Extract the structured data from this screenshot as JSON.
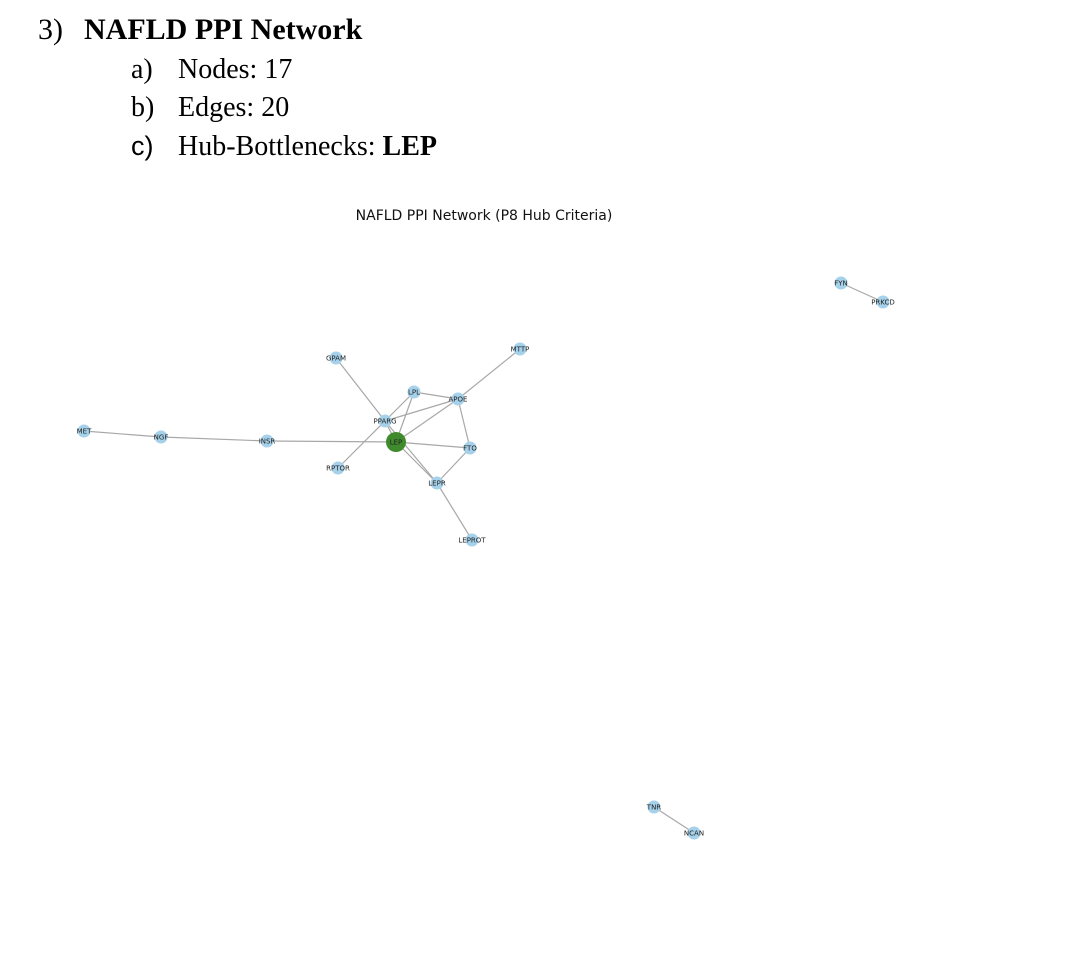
{
  "section": {
    "number": "3)",
    "title": "NAFLD PPI Network",
    "items": [
      {
        "label": "a)",
        "text": "Nodes: 17",
        "bold_value": ""
      },
      {
        "label": "b)",
        "text": "Edges: 20",
        "bold_value": ""
      },
      {
        "label": "c)",
        "text": "Hub-Bottlenecks: ",
        "bold_value": "LEP"
      }
    ]
  },
  "figure": {
    "title": "NAFLD PPI Network (P8 Hub Criteria)",
    "colors": {
      "node": "#a6d1ea",
      "hub": "#3f8a2c",
      "edge": "#a8a8a8"
    },
    "nodes": [
      {
        "id": "LEP",
        "hub": true
      },
      {
        "id": "PPARG",
        "hub": false
      },
      {
        "id": "LPL",
        "hub": false
      },
      {
        "id": "APOE",
        "hub": false
      },
      {
        "id": "MTTP",
        "hub": false
      },
      {
        "id": "GPAM",
        "hub": false
      },
      {
        "id": "FTO",
        "hub": false
      },
      {
        "id": "LEPR",
        "hub": false
      },
      {
        "id": "LEPROT",
        "hub": false
      },
      {
        "id": "RPTOR",
        "hub": false
      },
      {
        "id": "INSR",
        "hub": false
      },
      {
        "id": "NGF",
        "hub": false
      },
      {
        "id": "MET",
        "hub": false
      },
      {
        "id": "FYN",
        "hub": false
      },
      {
        "id": "PRKCD",
        "hub": false
      },
      {
        "id": "TNR",
        "hub": false
      },
      {
        "id": "NCAN",
        "hub": false
      }
    ],
    "edges": [
      [
        "MET",
        "NGF"
      ],
      [
        "NGF",
        "INSR"
      ],
      [
        "INSR",
        "LEP"
      ],
      [
        "GPAM",
        "PPARG"
      ],
      [
        "PPARG",
        "LPL"
      ],
      [
        "PPARG",
        "APOE"
      ],
      [
        "PPARG",
        "LEP"
      ],
      [
        "PPARG",
        "RPTOR"
      ],
      [
        "PPARG",
        "LEPR"
      ],
      [
        "LPL",
        "APOE"
      ],
      [
        "LPL",
        "LEP"
      ],
      [
        "APOE",
        "MTTP"
      ],
      [
        "APOE",
        "LEP"
      ],
      [
        "APOE",
        "FTO"
      ],
      [
        "LEP",
        "FTO"
      ],
      [
        "LEP",
        "LEPR"
      ],
      [
        "FTO",
        "LEPR"
      ],
      [
        "LEPR",
        "LEPROT"
      ],
      [
        "FYN",
        "PRKCD"
      ],
      [
        "TNR",
        "NCAN"
      ]
    ]
  }
}
